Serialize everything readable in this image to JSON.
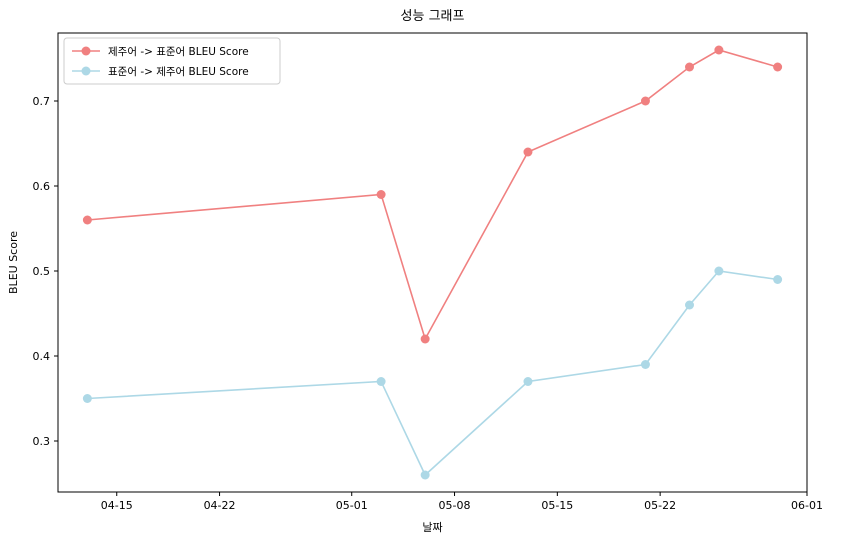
{
  "chart_data": {
    "type": "line",
    "title": "성능 그래프",
    "xlabel": "날짜",
    "ylabel": "BLEU Score",
    "x": [
      "2024-04-13",
      "2024-05-03",
      "2024-05-06",
      "2024-05-13",
      "2024-05-21",
      "2024-05-24",
      "2024-05-26",
      "2024-05-30"
    ],
    "xlim": [
      "2024-04-11",
      "2024-06-01"
    ],
    "xticks": [
      "2024-04-15",
      "2024-04-22",
      "2024-05-01",
      "2024-05-08",
      "2024-05-15",
      "2024-05-22",
      "2024-06-01"
    ],
    "xtick_labels": [
      "04-15",
      "04-22",
      "05-01",
      "05-08",
      "05-15",
      "05-22",
      "06-01"
    ],
    "ylim": [
      0.24,
      0.78
    ],
    "yticks": [
      0.3,
      0.4,
      0.5,
      0.6,
      0.7
    ],
    "ytick_labels": [
      "0.3",
      "0.4",
      "0.5",
      "0.6",
      "0.7"
    ],
    "grid": false,
    "legend_position": "top-left",
    "series": [
      {
        "name": "제주어 -> 표준어 BLEU Score",
        "color": "#f08080",
        "values": [
          0.56,
          0.59,
          0.42,
          0.64,
          0.7,
          0.74,
          0.76,
          0.74
        ]
      },
      {
        "name": "표준어 -> 제주어 BLEU Score",
        "color": "#add8e6",
        "values": [
          0.35,
          0.37,
          0.26,
          0.37,
          0.39,
          0.46,
          0.5,
          0.49
        ]
      }
    ]
  }
}
